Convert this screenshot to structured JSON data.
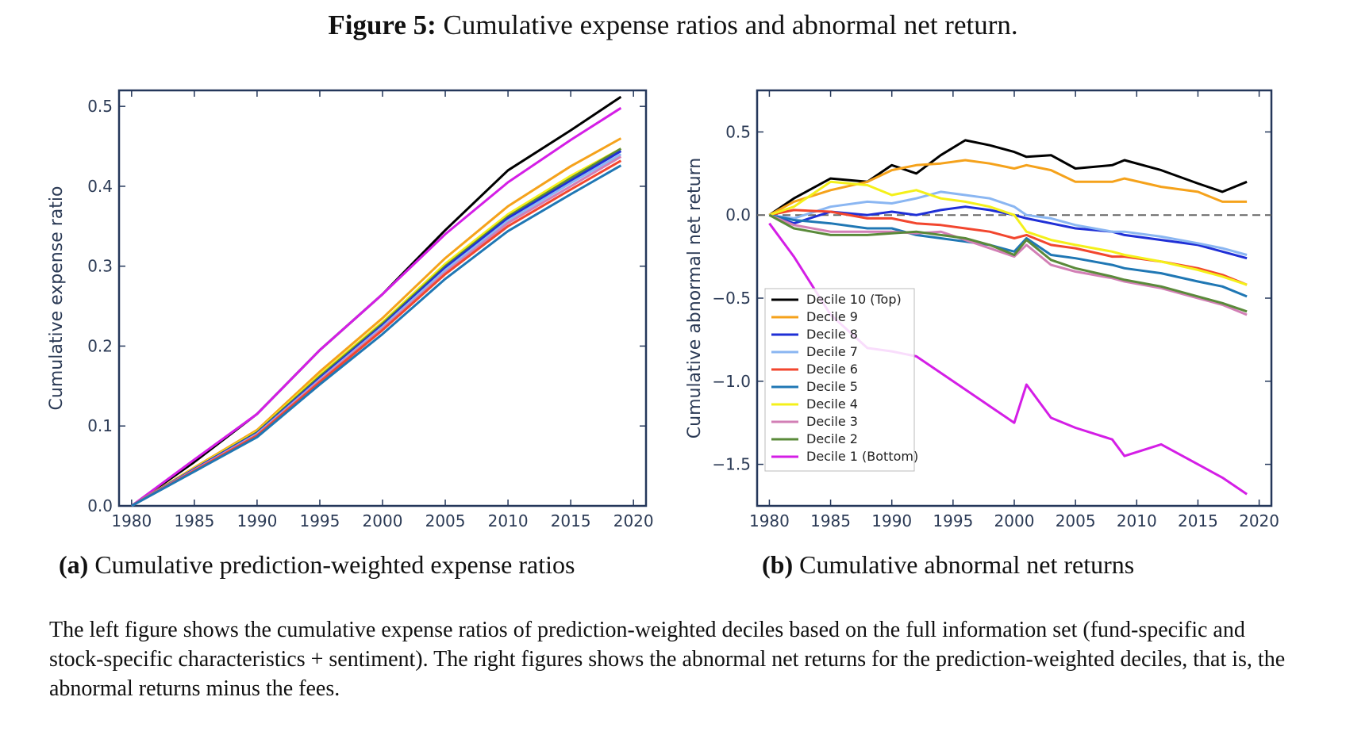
{
  "figure": {
    "label": "Figure 5:",
    "title": "Cumulative expense ratios and abnormal net return."
  },
  "captions": {
    "a_label": "(a)",
    "a_text": "Cumulative prediction-weighted expense ratios",
    "b_label": "(b)",
    "b_text": "Cumulative abnormal net returns"
  },
  "description": "The left figure shows the cumulative expense ratios of prediction-weighted deciles based on the full information set (fund-specific and stock-specific characteristics + sentiment). The right figures shows the abnormal net returns for the prediction-weighted deciles, that is, the abnormal returns minus the fees.",
  "colors": {
    "d10": "#000000",
    "d9": "#f5a21b",
    "d8": "#1f2fd6",
    "d7": "#8ab6f2",
    "d6": "#f2462e",
    "d5": "#1f77b4",
    "d4": "#f4f01a",
    "d3": "#d27fb5",
    "d2": "#5a8a3a",
    "d1": "#d41ee6"
  },
  "chart_data": [
    {
      "type": "line",
      "title": "",
      "xlabel": "",
      "ylabel": "Cumulative expense ratio",
      "xlim": [
        1979,
        2021
      ],
      "ylim": [
        0.0,
        0.52
      ],
      "xticks": [
        1980,
        1985,
        1990,
        1995,
        2000,
        2005,
        2010,
        2015,
        2020
      ],
      "yticks": [
        0.0,
        0.1,
        0.2,
        0.3,
        0.4,
        0.5
      ],
      "ytick_labels": [
        "0.0",
        "0.1",
        "0.2",
        "0.3",
        "0.4",
        "0.5"
      ],
      "x": [
        1980,
        1985,
        1990,
        1995,
        2000,
        2005,
        2010,
        2015,
        2019
      ],
      "series": [
        {
          "key": "d10",
          "values": [
            0,
            0.055,
            0.115,
            0.195,
            0.265,
            0.345,
            0.42,
            0.47,
            0.512
          ]
        },
        {
          "key": "d1",
          "values": [
            0,
            0.058,
            0.115,
            0.195,
            0.265,
            0.34,
            0.405,
            0.458,
            0.498
          ]
        },
        {
          "key": "d9",
          "values": [
            0,
            0.048,
            0.095,
            0.168,
            0.235,
            0.31,
            0.375,
            0.425,
            0.46
          ]
        },
        {
          "key": "d4",
          "values": [
            0,
            0.047,
            0.093,
            0.164,
            0.23,
            0.303,
            0.365,
            0.413,
            0.447
          ]
        },
        {
          "key": "d2",
          "values": [
            0,
            0.046,
            0.092,
            0.162,
            0.228,
            0.3,
            0.362,
            0.41,
            0.447
          ]
        },
        {
          "key": "d8",
          "values": [
            0,
            0.046,
            0.091,
            0.16,
            0.226,
            0.298,
            0.36,
            0.407,
            0.444
          ]
        },
        {
          "key": "d7",
          "values": [
            0,
            0.045,
            0.09,
            0.158,
            0.224,
            0.295,
            0.357,
            0.404,
            0.44
          ]
        },
        {
          "key": "d3",
          "values": [
            0,
            0.045,
            0.089,
            0.157,
            0.222,
            0.292,
            0.354,
            0.4,
            0.437
          ]
        },
        {
          "key": "d6",
          "values": [
            0,
            0.044,
            0.088,
            0.155,
            0.22,
            0.29,
            0.35,
            0.396,
            0.432
          ]
        },
        {
          "key": "d5",
          "values": [
            0,
            0.043,
            0.086,
            0.152,
            0.215,
            0.284,
            0.344,
            0.39,
            0.426
          ]
        }
      ]
    },
    {
      "type": "line",
      "title": "",
      "xlabel": "",
      "ylabel": "Cumulative abnormal net return",
      "xlim": [
        1979,
        2021
      ],
      "ylim": [
        -1.75,
        0.75
      ],
      "xticks": [
        1980,
        1985,
        1990,
        1995,
        2000,
        2005,
        2010,
        2015,
        2020
      ],
      "yticks": [
        0.5,
        0.0,
        -0.5,
        -1.0,
        -1.5
      ],
      "ytick_labels": [
        "0.5",
        "0.0",
        "−0.5",
        "−1.0",
        "−1.5"
      ],
      "zero_line": true,
      "legend_position": "lower-left",
      "x": [
        1980,
        1982,
        1985,
        1988,
        1990,
        1992,
        1994,
        1996,
        1998,
        2000,
        2001,
        2003,
        2005,
        2008,
        2009,
        2012,
        2015,
        2017,
        2019
      ],
      "series": [
        {
          "key": "d10",
          "name": "Decile 10 (Top)",
          "values": [
            0,
            0.1,
            0.22,
            0.2,
            0.3,
            0.25,
            0.36,
            0.45,
            0.42,
            0.38,
            0.35,
            0.36,
            0.28,
            0.3,
            0.33,
            0.27,
            0.19,
            0.14,
            0.2
          ]
        },
        {
          "key": "d9",
          "name": "Decile 9",
          "values": [
            0,
            0.08,
            0.15,
            0.2,
            0.27,
            0.3,
            0.31,
            0.33,
            0.31,
            0.28,
            0.3,
            0.27,
            0.2,
            0.2,
            0.22,
            0.17,
            0.14,
            0.08,
            0.08
          ]
        },
        {
          "key": "d8",
          "name": "Decile 8",
          "values": [
            0,
            -0.05,
            0.02,
            0.0,
            0.02,
            0.0,
            0.03,
            0.05,
            0.03,
            0.0,
            -0.02,
            -0.05,
            -0.08,
            -0.1,
            -0.12,
            -0.15,
            -0.18,
            -0.22,
            -0.26
          ]
        },
        {
          "key": "d7",
          "name": "Decile 7",
          "values": [
            0,
            -0.02,
            0.05,
            0.08,
            0.07,
            0.1,
            0.14,
            0.12,
            0.1,
            0.05,
            0.0,
            -0.02,
            -0.06,
            -0.1,
            -0.1,
            -0.13,
            -0.17,
            -0.2,
            -0.24
          ]
        },
        {
          "key": "d6",
          "name": "Decile 6",
          "values": [
            0,
            0.03,
            0.02,
            -0.02,
            -0.02,
            -0.05,
            -0.06,
            -0.08,
            -0.1,
            -0.14,
            -0.12,
            -0.18,
            -0.2,
            -0.25,
            -0.25,
            -0.28,
            -0.32,
            -0.36,
            -0.42
          ]
        },
        {
          "key": "d5",
          "name": "Decile 5",
          "values": [
            0,
            -0.03,
            -0.05,
            -0.08,
            -0.08,
            -0.12,
            -0.14,
            -0.16,
            -0.18,
            -0.22,
            -0.14,
            -0.24,
            -0.26,
            -0.3,
            -0.32,
            -0.35,
            -0.4,
            -0.43,
            -0.49
          ]
        },
        {
          "key": "d4",
          "name": "Decile 4",
          "values": [
            0,
            0.05,
            0.2,
            0.18,
            0.12,
            0.15,
            0.1,
            0.08,
            0.05,
            0.0,
            -0.1,
            -0.15,
            -0.18,
            -0.22,
            -0.24,
            -0.28,
            -0.33,
            -0.37,
            -0.42
          ]
        },
        {
          "key": "d3",
          "name": "Decile 3",
          "values": [
            0,
            -0.06,
            -0.1,
            -0.1,
            -0.1,
            -0.11,
            -0.1,
            -0.15,
            -0.2,
            -0.25,
            -0.18,
            -0.3,
            -0.34,
            -0.38,
            -0.4,
            -0.44,
            -0.5,
            -0.54,
            -0.6
          ]
        },
        {
          "key": "d2",
          "name": "Decile 2",
          "values": [
            0,
            -0.08,
            -0.12,
            -0.12,
            -0.11,
            -0.1,
            -0.12,
            -0.14,
            -0.18,
            -0.24,
            -0.15,
            -0.27,
            -0.32,
            -0.37,
            -0.39,
            -0.43,
            -0.49,
            -0.53,
            -0.58
          ]
        },
        {
          "key": "d1",
          "name": "Decile 1 (Bottom)",
          "values": [
            -0.05,
            -0.25,
            -0.6,
            -0.8,
            -0.82,
            -0.85,
            -0.95,
            -1.05,
            -1.15,
            -1.25,
            -1.02,
            -1.22,
            -1.28,
            -1.35,
            -1.45,
            -1.38,
            -1.5,
            -1.58,
            -1.68
          ]
        }
      ]
    }
  ]
}
